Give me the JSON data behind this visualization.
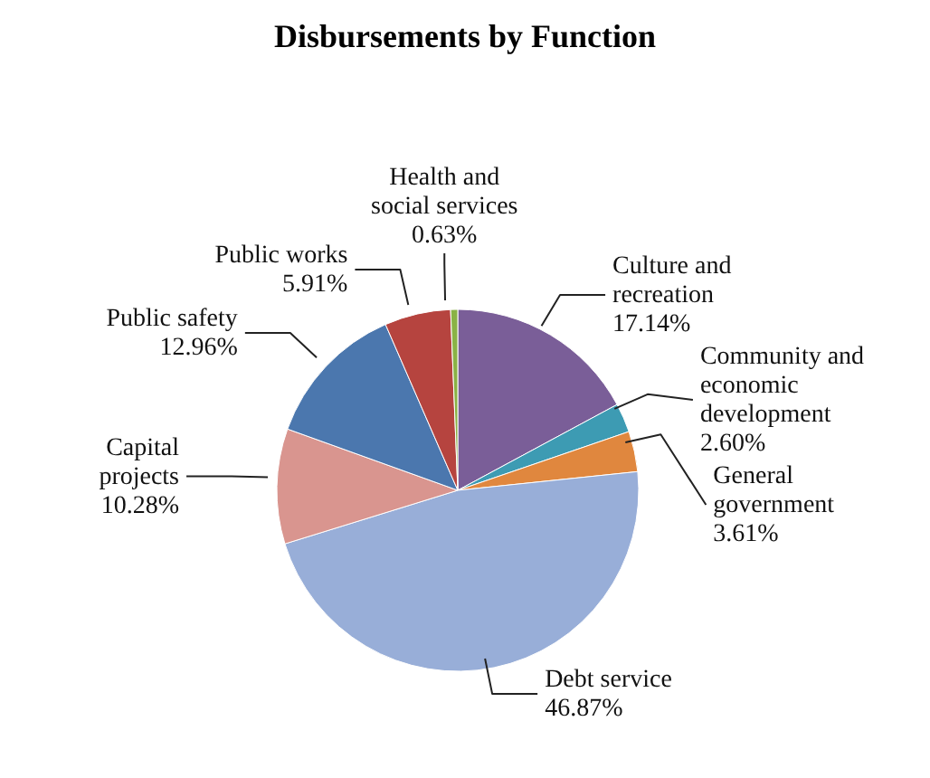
{
  "chart_data": {
    "type": "pie",
    "title": "Disbursements by Function",
    "categories": [
      "Culture and recreation",
      "Community and economic development",
      "General government",
      "Debt service",
      "Capital projects",
      "Public safety",
      "Public works",
      "Health and social services"
    ],
    "values": [
      17.14,
      2.6,
      3.61,
      46.87,
      10.28,
      12.96,
      5.91,
      0.63
    ],
    "value_labels": [
      "17.14%",
      "2.60%",
      "3.61%",
      "46.87%",
      "10.28%",
      "12.96%",
      "5.91%",
      "0.63%"
    ],
    "colors": [
      "#7a5e98",
      "#3d9bb3",
      "#e0873e",
      "#98aed8",
      "#d9958f",
      "#4b77ae",
      "#b6443f",
      "#8ab245"
    ],
    "legend": false
  }
}
